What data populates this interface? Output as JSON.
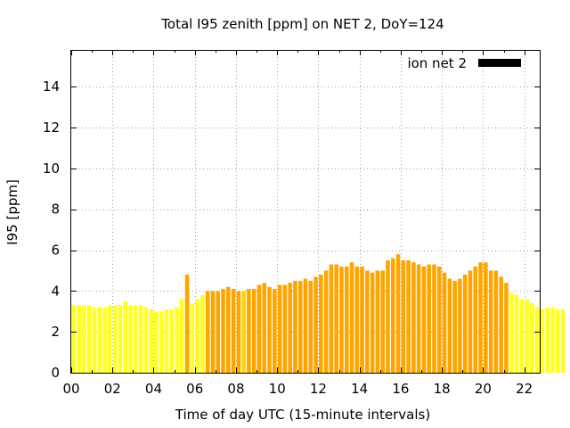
{
  "chart_data": {
    "type": "bar",
    "title": "Total I95 zenith [ppm] on NET 2, DoY=124",
    "xlabel": "Time of day UTC (15-minute intervals)",
    "ylabel": "I95 [ppm]",
    "xlim": [
      0,
      22.75
    ],
    "ylim": [
      0,
      15.8
    ],
    "x_ticks": [
      "00",
      "02",
      "04",
      "06",
      "08",
      "10",
      "12",
      "14",
      "16",
      "18",
      "20",
      "22"
    ],
    "y_ticks": [
      "0",
      "2",
      "4",
      "6",
      "8",
      "10",
      "12",
      "14"
    ],
    "grid": true,
    "legend": {
      "label": "ion net 2",
      "color": "#000000",
      "placement": "top-right"
    },
    "bin_hours": 0.25,
    "colors": {
      "yellow": "#ffff22",
      "orange": "#ffa500",
      "gold": "#ffd700"
    },
    "values": [
      3.3,
      3.3,
      3.3,
      3.3,
      3.2,
      3.2,
      3.2,
      3.3,
      3.3,
      3.3,
      3.5,
      3.3,
      3.3,
      3.3,
      3.2,
      3.1,
      3.0,
      3.0,
      3.1,
      3.1,
      3.2,
      3.6,
      4.8,
      3.4,
      3.6,
      3.8,
      4.0,
      4.0,
      4.0,
      4.1,
      4.2,
      4.1,
      4.0,
      4.0,
      4.1,
      4.1,
      4.3,
      4.4,
      4.2,
      4.1,
      4.3,
      4.3,
      4.4,
      4.5,
      4.5,
      4.6,
      4.5,
      4.7,
      4.8,
      5.0,
      5.3,
      5.3,
      5.2,
      5.2,
      5.4,
      5.2,
      5.2,
      5.0,
      4.9,
      5.0,
      5.0,
      5.5,
      5.6,
      5.8,
      5.5,
      5.5,
      5.4,
      5.3,
      5.2,
      5.3,
      5.3,
      5.2,
      4.9,
      4.6,
      4.5,
      4.6,
      4.8,
      5.0,
      5.2,
      5.4,
      5.4,
      5.0,
      5.0,
      4.7,
      4.4,
      3.9,
      3.8,
      3.6,
      3.6,
      3.4,
      3.2,
      3.1,
      3.2,
      3.2,
      3.1,
      3.1
    ],
    "bar_colors": [
      "yellow",
      "yellow",
      "yellow",
      "yellow",
      "yellow",
      "yellow",
      "yellow",
      "yellow",
      "yellow",
      "yellow",
      "yellow",
      "yellow",
      "yellow",
      "yellow",
      "yellow",
      "yellow",
      "yellow",
      "yellow",
      "yellow",
      "yellow",
      "yellow",
      "yellow",
      "orange",
      "yellow",
      "yellow",
      "yellow",
      "orange",
      "orange",
      "orange",
      "orange",
      "orange",
      "orange",
      "orange",
      "gold",
      "orange",
      "orange",
      "orange",
      "orange",
      "orange",
      "orange",
      "orange",
      "orange",
      "orange",
      "orange",
      "orange",
      "orange",
      "orange",
      "orange",
      "orange",
      "orange",
      "orange",
      "orange",
      "orange",
      "orange",
      "orange",
      "orange",
      "orange",
      "orange",
      "orange",
      "orange",
      "orange",
      "orange",
      "orange",
      "orange",
      "orange",
      "orange",
      "orange",
      "orange",
      "orange",
      "orange",
      "orange",
      "orange",
      "orange",
      "orange",
      "orange",
      "orange",
      "orange",
      "orange",
      "orange",
      "orange",
      "orange",
      "orange",
      "orange",
      "orange",
      "orange",
      "yellow",
      "yellow",
      "yellow",
      "yellow",
      "yellow",
      "yellow",
      "yellow",
      "yellow",
      "yellow",
      "yellow",
      "yellow"
    ]
  }
}
